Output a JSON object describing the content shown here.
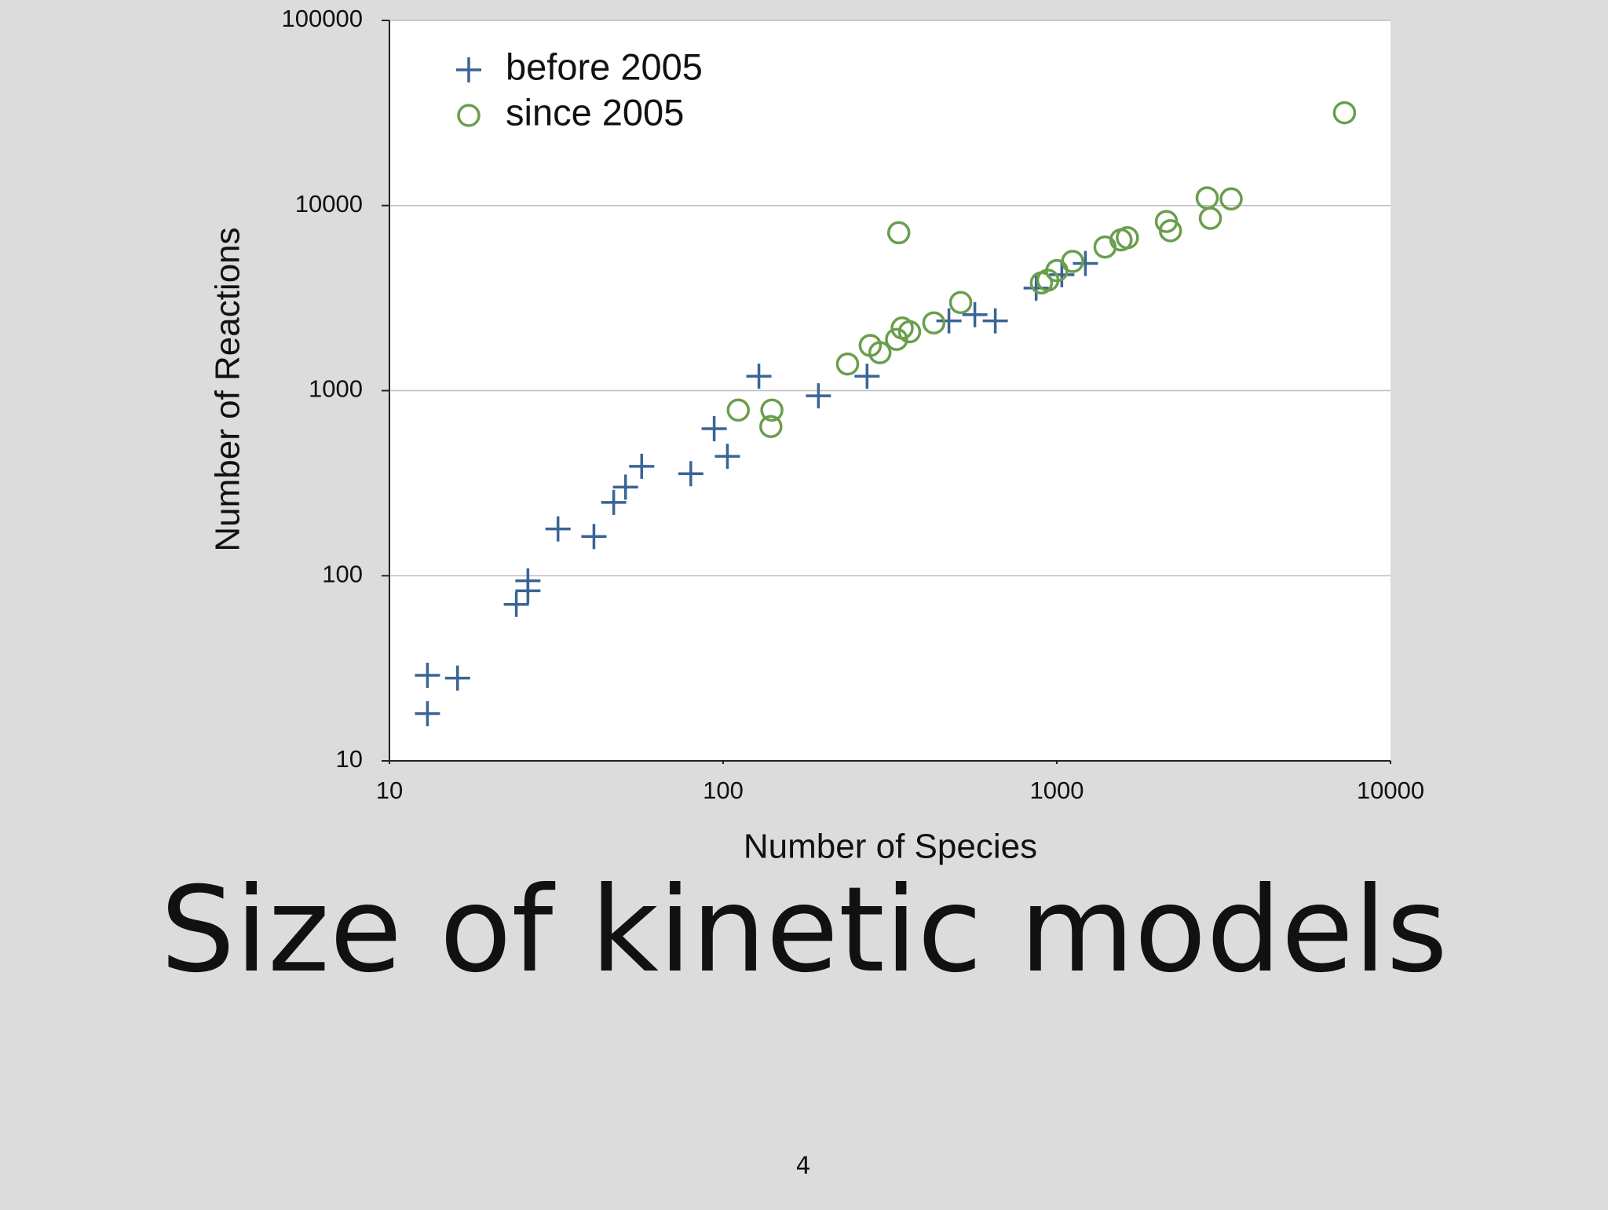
{
  "chart_data": {
    "type": "scatter",
    "title": "Size of kinetic models",
    "xlabel": "Number of Species",
    "ylabel": "Number of Reactions",
    "xscale": "log",
    "yscale": "log",
    "xlim": [
      10,
      10000
    ],
    "ylim": [
      10,
      100000
    ],
    "xticks": [
      10,
      100,
      1000,
      10000
    ],
    "yticks": [
      10,
      100,
      1000,
      10000,
      100000
    ],
    "grid": "y",
    "legend": "upper left",
    "series": [
      {
        "name": "before 2005",
        "color": "#3a6496",
        "marker": "plus",
        "x": [
          13,
          13,
          16,
          24,
          26,
          26,
          32,
          41,
          47,
          51,
          57,
          80,
          94,
          103,
          128,
          193,
          270,
          475,
          568,
          654,
          867,
          1035,
          1218
        ],
        "y": [
          29,
          18,
          28,
          70,
          94,
          83,
          179,
          163,
          249,
          301,
          390,
          356,
          623,
          442,
          1197,
          937,
          1197,
          2383,
          2573,
          2383,
          3580,
          4229,
          4865
        ]
      },
      {
        "name": "since 2005",
        "color": "#6a9e4c",
        "marker": "circle",
        "x": [
          111,
          140,
          139,
          236,
          276,
          295,
          331,
          344,
          362,
          336,
          428,
          515,
          899,
          940,
          1000,
          1115,
          1395,
          1557,
          1627,
          2130,
          2190,
          2822,
          2885,
          3330,
          7280
        ],
        "y": [
          785,
          785,
          640,
          1393,
          1754,
          1603,
          1892,
          2178,
          2080,
          7128,
          2323,
          2993,
          3820,
          3950,
          4450,
          4990,
          5970,
          6520,
          6700,
          8200,
          7310,
          11000,
          8530,
          10860,
          31700
        ]
      }
    ]
  },
  "slide": {
    "page_number": "4"
  }
}
